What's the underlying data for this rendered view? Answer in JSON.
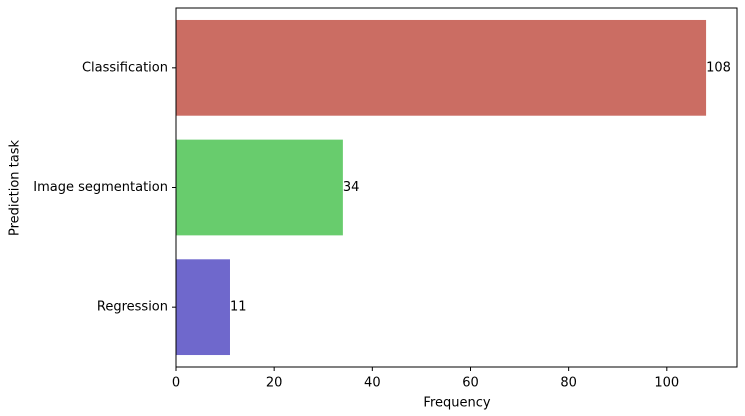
{
  "chart_data": {
    "type": "barh",
    "xlabel": "Frequency",
    "ylabel": "Prediction task",
    "categories": [
      "Classification",
      "Image segmentation",
      "Regression"
    ],
    "values": [
      108,
      34,
      11
    ],
    "colors": [
      "#cb6d63",
      "#68cc6d",
      "#6f68cc"
    ],
    "xlim": [
      0,
      114.3
    ],
    "xticks": [
      0,
      20,
      40,
      60,
      80,
      100
    ]
  }
}
